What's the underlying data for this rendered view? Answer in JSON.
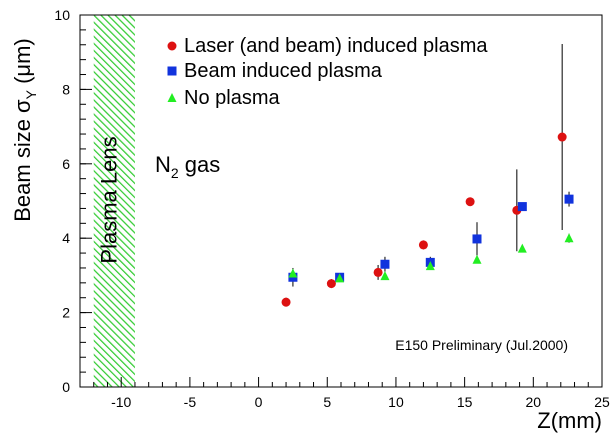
{
  "chart_data": {
    "type": "scatter",
    "title": "",
    "xlabel": "Z(mm)",
    "ylabel_main": "Beam size σ",
    "ylabel_sub": "Y",
    "ylabel_unit": " (μm)",
    "xlim": [
      -13,
      25
    ],
    "ylim": [
      0,
      10
    ],
    "x_ticks": [
      -10,
      -5,
      0,
      5,
      10,
      15,
      20,
      25
    ],
    "y_ticks": [
      0,
      2,
      4,
      6,
      8,
      10
    ],
    "grid": false,
    "legend_position": "top-right",
    "shaded_region": {
      "label": "Plasma Lens",
      "x_range": [
        -12,
        -9
      ],
      "color": "#33cc33"
    },
    "annotations": {
      "gas_main": "N",
      "gas_sub": "2",
      "gas_rest": " gas",
      "footer": "E150 Preliminary (Jul.2000)"
    },
    "series": [
      {
        "name": "Laser (and beam) induced plasma",
        "marker": "circle",
        "color": "#dd1111",
        "points": [
          {
            "x": 2.0,
            "y": 2.28,
            "err": 0.12
          },
          {
            "x": 5.3,
            "y": 2.78,
            "err": 0.12
          },
          {
            "x": 8.7,
            "y": 3.08,
            "err": 0.2
          },
          {
            "x": 12.0,
            "y": 3.82,
            "err": 0.12
          },
          {
            "x": 15.4,
            "y": 4.98,
            "err": 0.05
          },
          {
            "x": 18.8,
            "y": 4.75,
            "err": 1.1
          },
          {
            "x": 22.1,
            "y": 6.72,
            "err": 2.5
          }
        ]
      },
      {
        "name": "Beam induced plasma",
        "marker": "square",
        "color": "#1133dd",
        "points": [
          {
            "x": 2.5,
            "y": 2.95,
            "err": 0.25
          },
          {
            "x": 5.9,
            "y": 2.95,
            "err": 0.05
          },
          {
            "x": 9.2,
            "y": 3.3,
            "err": 0.2
          },
          {
            "x": 12.5,
            "y": 3.35,
            "err": 0.15
          },
          {
            "x": 15.9,
            "y": 3.98,
            "err": 0.45
          },
          {
            "x": 19.2,
            "y": 4.85,
            "err": 0.1
          },
          {
            "x": 22.6,
            "y": 5.05,
            "err": 0.2
          }
        ]
      },
      {
        "name": "No plasma",
        "marker": "triangle",
        "color": "#22ee22",
        "points": [
          {
            "x": 2.5,
            "y": 3.05,
            "err": 0
          },
          {
            "x": 5.9,
            "y": 2.92,
            "err": 0
          },
          {
            "x": 9.2,
            "y": 2.98,
            "err": 0
          },
          {
            "x": 12.5,
            "y": 3.25,
            "err": 0
          },
          {
            "x": 15.9,
            "y": 3.42,
            "err": 0
          },
          {
            "x": 19.2,
            "y": 3.72,
            "err": 0
          },
          {
            "x": 22.6,
            "y": 4.0,
            "err": 0.12
          }
        ]
      }
    ]
  }
}
